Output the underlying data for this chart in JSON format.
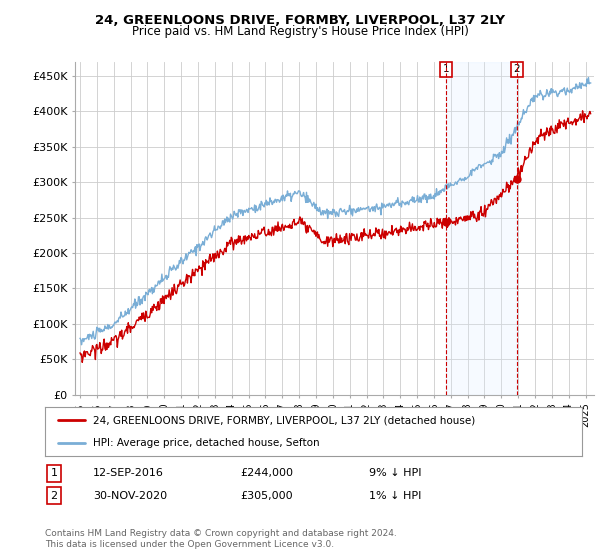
{
  "title": "24, GREENLOONS DRIVE, FORMBY, LIVERPOOL, L37 2LY",
  "subtitle": "Price paid vs. HM Land Registry's House Price Index (HPI)",
  "ylabel_ticks": [
    "£0",
    "£50K",
    "£100K",
    "£150K",
    "£200K",
    "£250K",
    "£300K",
    "£350K",
    "£400K",
    "£450K"
  ],
  "ytick_values": [
    0,
    50000,
    100000,
    150000,
    200000,
    250000,
    300000,
    350000,
    400000,
    450000
  ],
  "ylim": [
    0,
    470000
  ],
  "xlim_start": 1994.7,
  "xlim_end": 2025.5,
  "xtick_years": [
    1995,
    1996,
    1997,
    1998,
    1999,
    2000,
    2001,
    2002,
    2003,
    2004,
    2005,
    2006,
    2007,
    2008,
    2009,
    2010,
    2011,
    2012,
    2013,
    2014,
    2015,
    2016,
    2017,
    2018,
    2019,
    2020,
    2021,
    2022,
    2023,
    2024,
    2025
  ],
  "hpi_color": "#7aaed6",
  "price_color": "#cc0000",
  "shade_color": "#ddeeff",
  "vline1_x": 2016.71,
  "vline2_x": 2020.92,
  "vline_color": "#cc0000",
  "marker1_x": 2016.71,
  "marker1_y": 244000,
  "marker2_x": 2020.92,
  "marker2_y": 305000,
  "legend_line1": "24, GREENLOONS DRIVE, FORMBY, LIVERPOOL, L37 2LY (detached house)",
  "legend_line2": "HPI: Average price, detached house, Sefton",
  "note1_num": "1",
  "note1_date": "12-SEP-2016",
  "note1_price": "£244,000",
  "note1_hpi": "9% ↓ HPI",
  "note2_num": "2",
  "note2_date": "30-NOV-2020",
  "note2_price": "£305,000",
  "note2_hpi": "1% ↓ HPI",
  "footer": "Contains HM Land Registry data © Crown copyright and database right 2024.\nThis data is licensed under the Open Government Licence v3.0.",
  "background_color": "#ffffff",
  "grid_color": "#cccccc"
}
